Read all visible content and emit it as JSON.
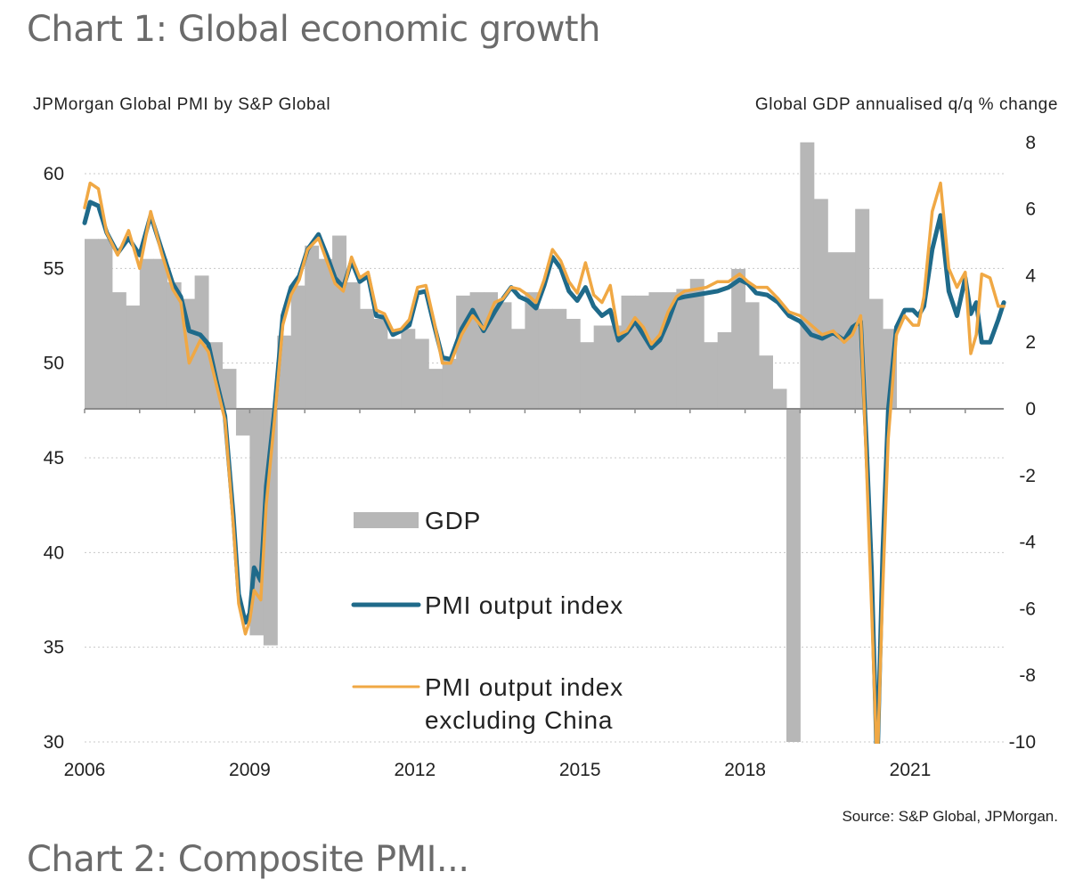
{
  "title": "Chart 1: Global economic growth",
  "next_title": "Chart 2: Composite PMI... ",
  "chart_data": {
    "type": "bar+line",
    "title": "Chart 1: Global economic growth",
    "left_axis_label": "JPMorgan Global PMI by S&P Global",
    "right_axis_label": "Global GDP annualised q/q % change",
    "left_ylim": [
      30,
      62.5
    ],
    "right_ylim": [
      -10,
      8.1
    ],
    "left_ticks": [
      30,
      35,
      40,
      45,
      50,
      55,
      60
    ],
    "right_ticks": [
      -10,
      -8,
      -6,
      -4,
      -2,
      0,
      2,
      4,
      6,
      8
    ],
    "x_ticks": [
      "2006",
      "2009",
      "2012",
      "2015",
      "2018",
      "2021"
    ],
    "xlim": [
      2006.0,
      2022.8
    ],
    "grid": "horizontal dotted",
    "source": "Source: S&P Global, JPMorgan.",
    "legend": [
      {
        "name": "GDP",
        "kind": "bar",
        "color": "#b7b7b7"
      },
      {
        "name": "PMI output index",
        "kind": "line",
        "color": "#1f6a8a"
      },
      {
        "name": "PMI output index excluding China",
        "kind": "line",
        "color": "#f0a844"
      }
    ],
    "legend_lines": [
      "GDP",
      "PMI output index",
      "PMI output index",
      "excluding China"
    ],
    "gdp": {
      "name": "GDP",
      "axis": "right",
      "start": 2006.0,
      "step": 0.25,
      "values": [
        5.1,
        5.1,
        3.5,
        3.1,
        4.5,
        4.5,
        3.8,
        3.3,
        4.0,
        2.0,
        1.2,
        -0.8,
        -6.8,
        -7.1,
        2.2,
        3.7,
        4.9,
        4.5,
        5.2,
        3.8,
        3.0,
        2.7,
        2.1,
        2.4,
        2.1,
        1.2,
        1.5,
        3.4,
        3.5,
        3.5,
        3.2,
        2.4,
        3.5,
        3.0,
        3.0,
        2.7,
        2.0,
        2.5,
        2.5,
        3.4,
        3.4,
        3.5,
        3.5,
        3.6,
        3.9,
        2.0,
        2.3,
        4.2,
        3.2,
        1.6,
        0.6,
        -10.0,
        8.0,
        6.3,
        4.7,
        4.7,
        6.0,
        3.3,
        2.4,
        0.0
      ],
      "values_note": "quarterly, annualised q/q %; final bar clipped at axis"
    },
    "pmi": {
      "name": "PMI output index",
      "axis": "left",
      "x": [
        2006.0,
        2006.1,
        2006.25,
        2006.4,
        2006.6,
        2006.8,
        2007.0,
        2007.2,
        2007.4,
        2007.6,
        2007.75,
        2007.9,
        2008.1,
        2008.25,
        2008.4,
        2008.55,
        2008.7,
        2008.8,
        2008.92,
        2009.0,
        2009.08,
        2009.2,
        2009.3,
        2009.45,
        2009.6,
        2009.75,
        2009.9,
        2010.05,
        2010.25,
        2010.4,
        2010.55,
        2010.7,
        2010.85,
        2011.0,
        2011.15,
        2011.3,
        2011.45,
        2011.6,
        2011.75,
        2011.9,
        2012.05,
        2012.2,
        2012.35,
        2012.5,
        2012.65,
        2012.85,
        2013.05,
        2013.25,
        2013.45,
        2013.6,
        2013.75,
        2013.9,
        2014.05,
        2014.2,
        2014.35,
        2014.5,
        2014.65,
        2014.8,
        2014.95,
        2015.1,
        2015.25,
        2015.4,
        2015.55,
        2015.7,
        2015.85,
        2016.0,
        2016.15,
        2016.3,
        2016.45,
        2016.6,
        2016.75,
        2016.9,
        2017.1,
        2017.3,
        2017.5,
        2017.7,
        2017.9,
        2018.05,
        2018.2,
        2018.4,
        2018.6,
        2018.8,
        2019.0,
        2019.2,
        2019.4,
        2019.6,
        2019.8,
        2019.95,
        2020.1,
        2020.2,
        2020.3,
        2020.4,
        2020.5,
        2020.6,
        2020.75,
        2020.9,
        2021.05,
        2021.15,
        2021.25,
        2021.4,
        2021.55,
        2021.7,
        2021.85,
        2022.0,
        2022.1,
        2022.2,
        2022.3,
        2022.45,
        2022.6,
        2022.7
      ],
      "values": [
        57.4,
        58.5,
        58.3,
        56.9,
        55.8,
        56.6,
        55.7,
        57.8,
        56.0,
        54.2,
        53.5,
        51.7,
        51.5,
        51.0,
        49.0,
        47.2,
        42.0,
        37.8,
        36.3,
        36.8,
        39.2,
        38.5,
        43.5,
        47.5,
        52.5,
        54.0,
        54.6,
        56.0,
        56.8,
        55.7,
        54.5,
        54.0,
        55.4,
        54.3,
        54.6,
        52.5,
        52.4,
        51.5,
        51.7,
        52.0,
        53.7,
        53.8,
        52.0,
        50.3,
        50.2,
        51.8,
        52.8,
        51.7,
        52.7,
        53.4,
        54.0,
        53.5,
        53.3,
        52.9,
        54.1,
        55.6,
        55.0,
        53.8,
        53.3,
        54.0,
        53.0,
        52.5,
        52.8,
        51.2,
        51.6,
        52.2,
        51.5,
        50.8,
        51.2,
        52.2,
        53.4,
        53.5,
        53.6,
        53.7,
        53.8,
        54.0,
        54.4,
        54.2,
        53.7,
        53.6,
        53.2,
        52.5,
        52.2,
        51.5,
        51.3,
        51.6,
        51.2,
        51.9,
        52.2,
        46.0,
        39.0,
        26.0,
        40.0,
        47.5,
        51.9,
        52.8,
        52.8,
        52.5,
        53.0,
        56.0,
        57.8,
        53.8,
        52.5,
        54.5,
        52.6,
        53.2,
        51.1,
        51.1,
        52.3,
        53.2
      ]
    },
    "pmi_ex_china": {
      "name": "PMI output index excluding China",
      "axis": "left",
      "x": [
        2006.0,
        2006.1,
        2006.25,
        2006.4,
        2006.6,
        2006.8,
        2007.0,
        2007.2,
        2007.4,
        2007.6,
        2007.75,
        2007.9,
        2008.1,
        2008.25,
        2008.4,
        2008.55,
        2008.7,
        2008.8,
        2008.92,
        2009.0,
        2009.08,
        2009.2,
        2009.3,
        2009.45,
        2009.6,
        2009.75,
        2009.9,
        2010.05,
        2010.25,
        2010.4,
        2010.55,
        2010.7,
        2010.85,
        2011.0,
        2011.15,
        2011.3,
        2011.45,
        2011.6,
        2011.75,
        2011.9,
        2012.05,
        2012.2,
        2012.35,
        2012.5,
        2012.65,
        2012.85,
        2013.05,
        2013.25,
        2013.45,
        2013.6,
        2013.75,
        2013.9,
        2014.05,
        2014.2,
        2014.35,
        2014.5,
        2014.65,
        2014.8,
        2014.95,
        2015.1,
        2015.25,
        2015.4,
        2015.55,
        2015.7,
        2015.85,
        2016.0,
        2016.15,
        2016.3,
        2016.45,
        2016.6,
        2016.75,
        2016.9,
        2017.1,
        2017.3,
        2017.5,
        2017.7,
        2017.9,
        2018.05,
        2018.2,
        2018.4,
        2018.6,
        2018.8,
        2019.0,
        2019.2,
        2019.4,
        2019.6,
        2019.8,
        2019.95,
        2020.1,
        2020.2,
        2020.3,
        2020.4,
        2020.5,
        2020.6,
        2020.75,
        2020.9,
        2021.05,
        2021.15,
        2021.25,
        2021.4,
        2021.55,
        2021.7,
        2021.85,
        2022.0,
        2022.1,
        2022.2,
        2022.3,
        2022.45,
        2022.6,
        2022.7
      ],
      "values": [
        58.2,
        59.5,
        59.2,
        56.9,
        55.7,
        57.0,
        55.0,
        58.0,
        55.8,
        53.9,
        53.2,
        50.0,
        51.2,
        50.6,
        48.8,
        47.0,
        41.5,
        37.3,
        35.7,
        36.4,
        38.0,
        37.5,
        42.5,
        47.0,
        52.0,
        53.6,
        54.4,
        56.0,
        56.6,
        55.4,
        54.2,
        53.8,
        55.6,
        54.5,
        54.8,
        52.8,
        52.6,
        51.7,
        51.8,
        52.3,
        54.0,
        54.1,
        52.2,
        50.0,
        50.0,
        51.5,
        52.5,
        51.8,
        53.2,
        53.4,
        54.0,
        53.9,
        53.6,
        53.2,
        54.4,
        56.0,
        55.4,
        54.3,
        53.7,
        55.3,
        53.6,
        53.2,
        54.1,
        51.5,
        51.7,
        52.4,
        51.9,
        51.0,
        51.5,
        52.7,
        53.5,
        53.8,
        53.9,
        54.0,
        54.3,
        54.3,
        54.7,
        54.3,
        54.0,
        54.0,
        53.4,
        52.7,
        52.5,
        52.0,
        51.5,
        51.7,
        51.1,
        51.5,
        52.5,
        45.0,
        37.0,
        25.0,
        38.0,
        46.0,
        51.5,
        52.5,
        52.0,
        52.0,
        53.5,
        58.0,
        59.5,
        55.0,
        54.0,
        54.8,
        50.5,
        51.5,
        54.7,
        54.5,
        53.0,
        53.0
      ]
    }
  }
}
